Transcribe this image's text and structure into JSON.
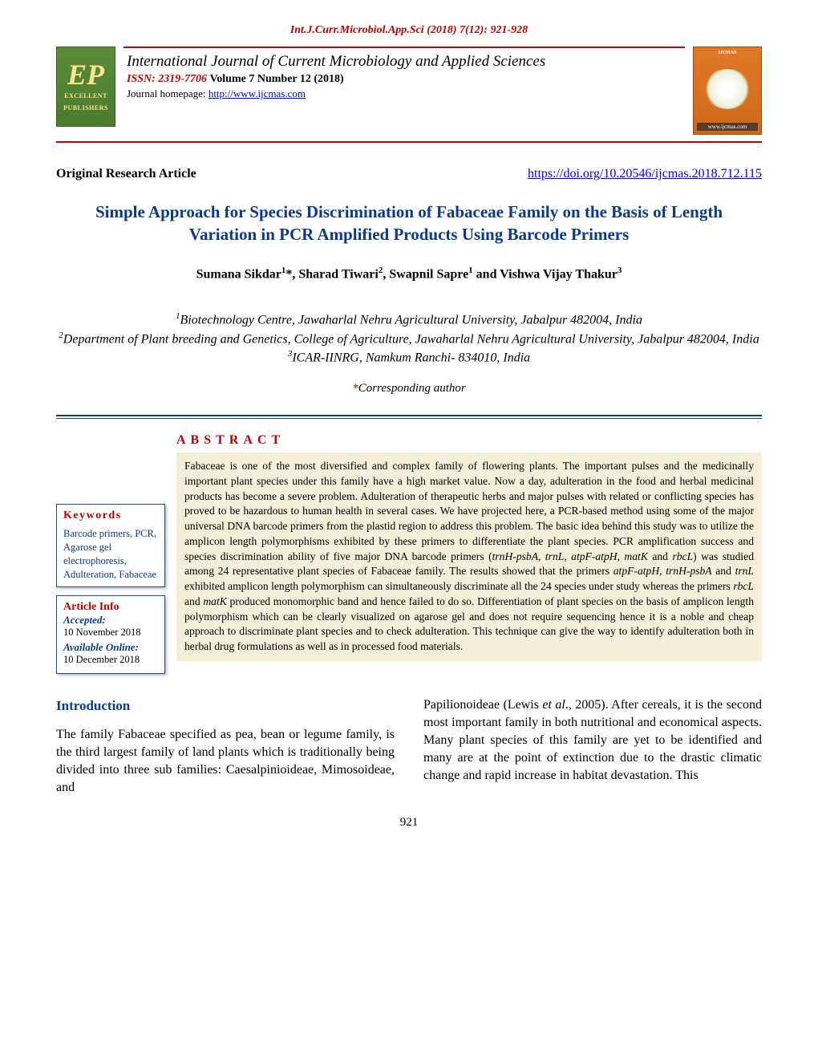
{
  "header": {
    "citation": "Int.J.Curr.Microbiol.App.Sci (2018) 7(12): 921-928",
    "journal_name": "International Journal of Current Microbiology and Applied Sciences",
    "issn_label": "ISSN: 2319-7706",
    "volume_text": "Volume 7 Number 12 (2018)",
    "homepage_label": "Journal homepage: ",
    "homepage_url": "http://www.ijcmas.com",
    "logo_left_top": "EP",
    "logo_left_sub1": "EXCELLENT",
    "logo_left_sub2": "PUBLISHERS",
    "logo_right_top": "IJCMAS",
    "logo_right_bottom": "www.ijcmas.com"
  },
  "meta": {
    "article_type": "Original Research Article",
    "doi": "https://doi.org/10.20546/ijcmas.2018.712.115"
  },
  "title": "Simple Approach for Species Discrimination of Fabaceae Family on the Basis of Length Variation in PCR Amplified Products Using Barcode Primers",
  "authors_html": "Sumana Sikdar<sup>1</sup>*, Sharad Tiwari<sup>2</sup>, Swapnil Sapre<sup>1</sup> and Vishwa Vijay Thakur<sup>3</sup>",
  "affiliations_html": "<sup>1</sup>Biotechnology Centre, Jawaharlal Nehru Agricultural University, Jabalpur 482004, India<br><sup>2</sup>Department of Plant breeding and Genetics, College of Agriculture, Jawaharlal Nehru Agricultural University, Jabalpur 482004, India<br><sup>3</sup>ICAR-IINRG, Namkum Ranchi- 834010, India",
  "corresponding_text": "Corresponding author",
  "abstract": {
    "heading": "ABSTRACT",
    "keywords_heading": "Keywords",
    "keywords_text": "Barcode primers, PCR, Agarose gel electrophoresis, Adulteration, Fabaceae",
    "article_info_heading": "Article Info",
    "accepted_label": "Accepted:",
    "accepted_date": "10 November 2018",
    "available_label": "Available Online:",
    "available_date": "10 December 2018",
    "body_html": "Fabaceae is one of the most diversified and complex family of flowering plants. The important pulses and the medicinally important plant species under this family have a high market value. Now a day, adulteration in the food and herbal medicinal products has become a severe problem. Adulteration of therapeutic herbs and major pulses with related or conflicting species has proved to be hazardous to human health in several cases. We have projected here, a PCR-based method using some of the major universal DNA barcode primers from the plastid region to address this problem. The basic idea behind this study was to utilize the amplicon length polymorphisms exhibited by these primers to differentiate the plant species. PCR amplification success and species discrimination ability of five major DNA barcode primers (<span class=\"ital\">trnH-psbA</span>, <span class=\"ital\">trnL</span>, <span class=\"ital\">atpF-atpH</span>, <span class=\"ital\">matK</span> and <span class=\"ital\">rbcL</span>) was studied among 24 representative plant species of Fabaceae family. The results showed that the primers <span class=\"ital\">atpF-atpH</span>, <span class=\"ital\">trnH-psbA</span> and <span class=\"ital\">trnL</span> exhibited amplicon length polymorphism can simultaneously discriminate all the 24 species under study whereas the primers <span class=\"ital\">rbcL</span> and <span class=\"ital\">matK</span> produced monomorphic band and hence failed to do so. Differentiation of plant species on the basis of amplicon length polymorphism which can be clearly visualized on agarose gel and does not require sequencing hence it is a noble and cheap approach to discriminate plant species and to check adulteration. This technique can give the way to identify adulteration both in herbal drug formulations as well as in processed food materials."
  },
  "intro": {
    "heading": "Introduction",
    "col1": "The family Fabaceae specified as pea, bean or legume family, is the third largest family of land plants which is traditionally being divided into three sub families: Caesalpinioideae, Mimosoideae, and",
    "col2_html": "Papilionoideae (Lewis <span class=\"ital\">et al</span>., 2005). After cereals, it is the second most important family in both nutritional and economical aspects. Many plant species of this family are yet to be identified and many are at the point of extinction due to the drastic climatic change and rapid increase in habitat devastation. This"
  },
  "page_number": "921",
  "colors": {
    "red": "#c00000",
    "blue": "#0a3a8a",
    "link": "#0000ee",
    "abstract_bg": "#f4efd8",
    "logo_green": "#5b8c3a",
    "logo_orange": "#e07828"
  }
}
